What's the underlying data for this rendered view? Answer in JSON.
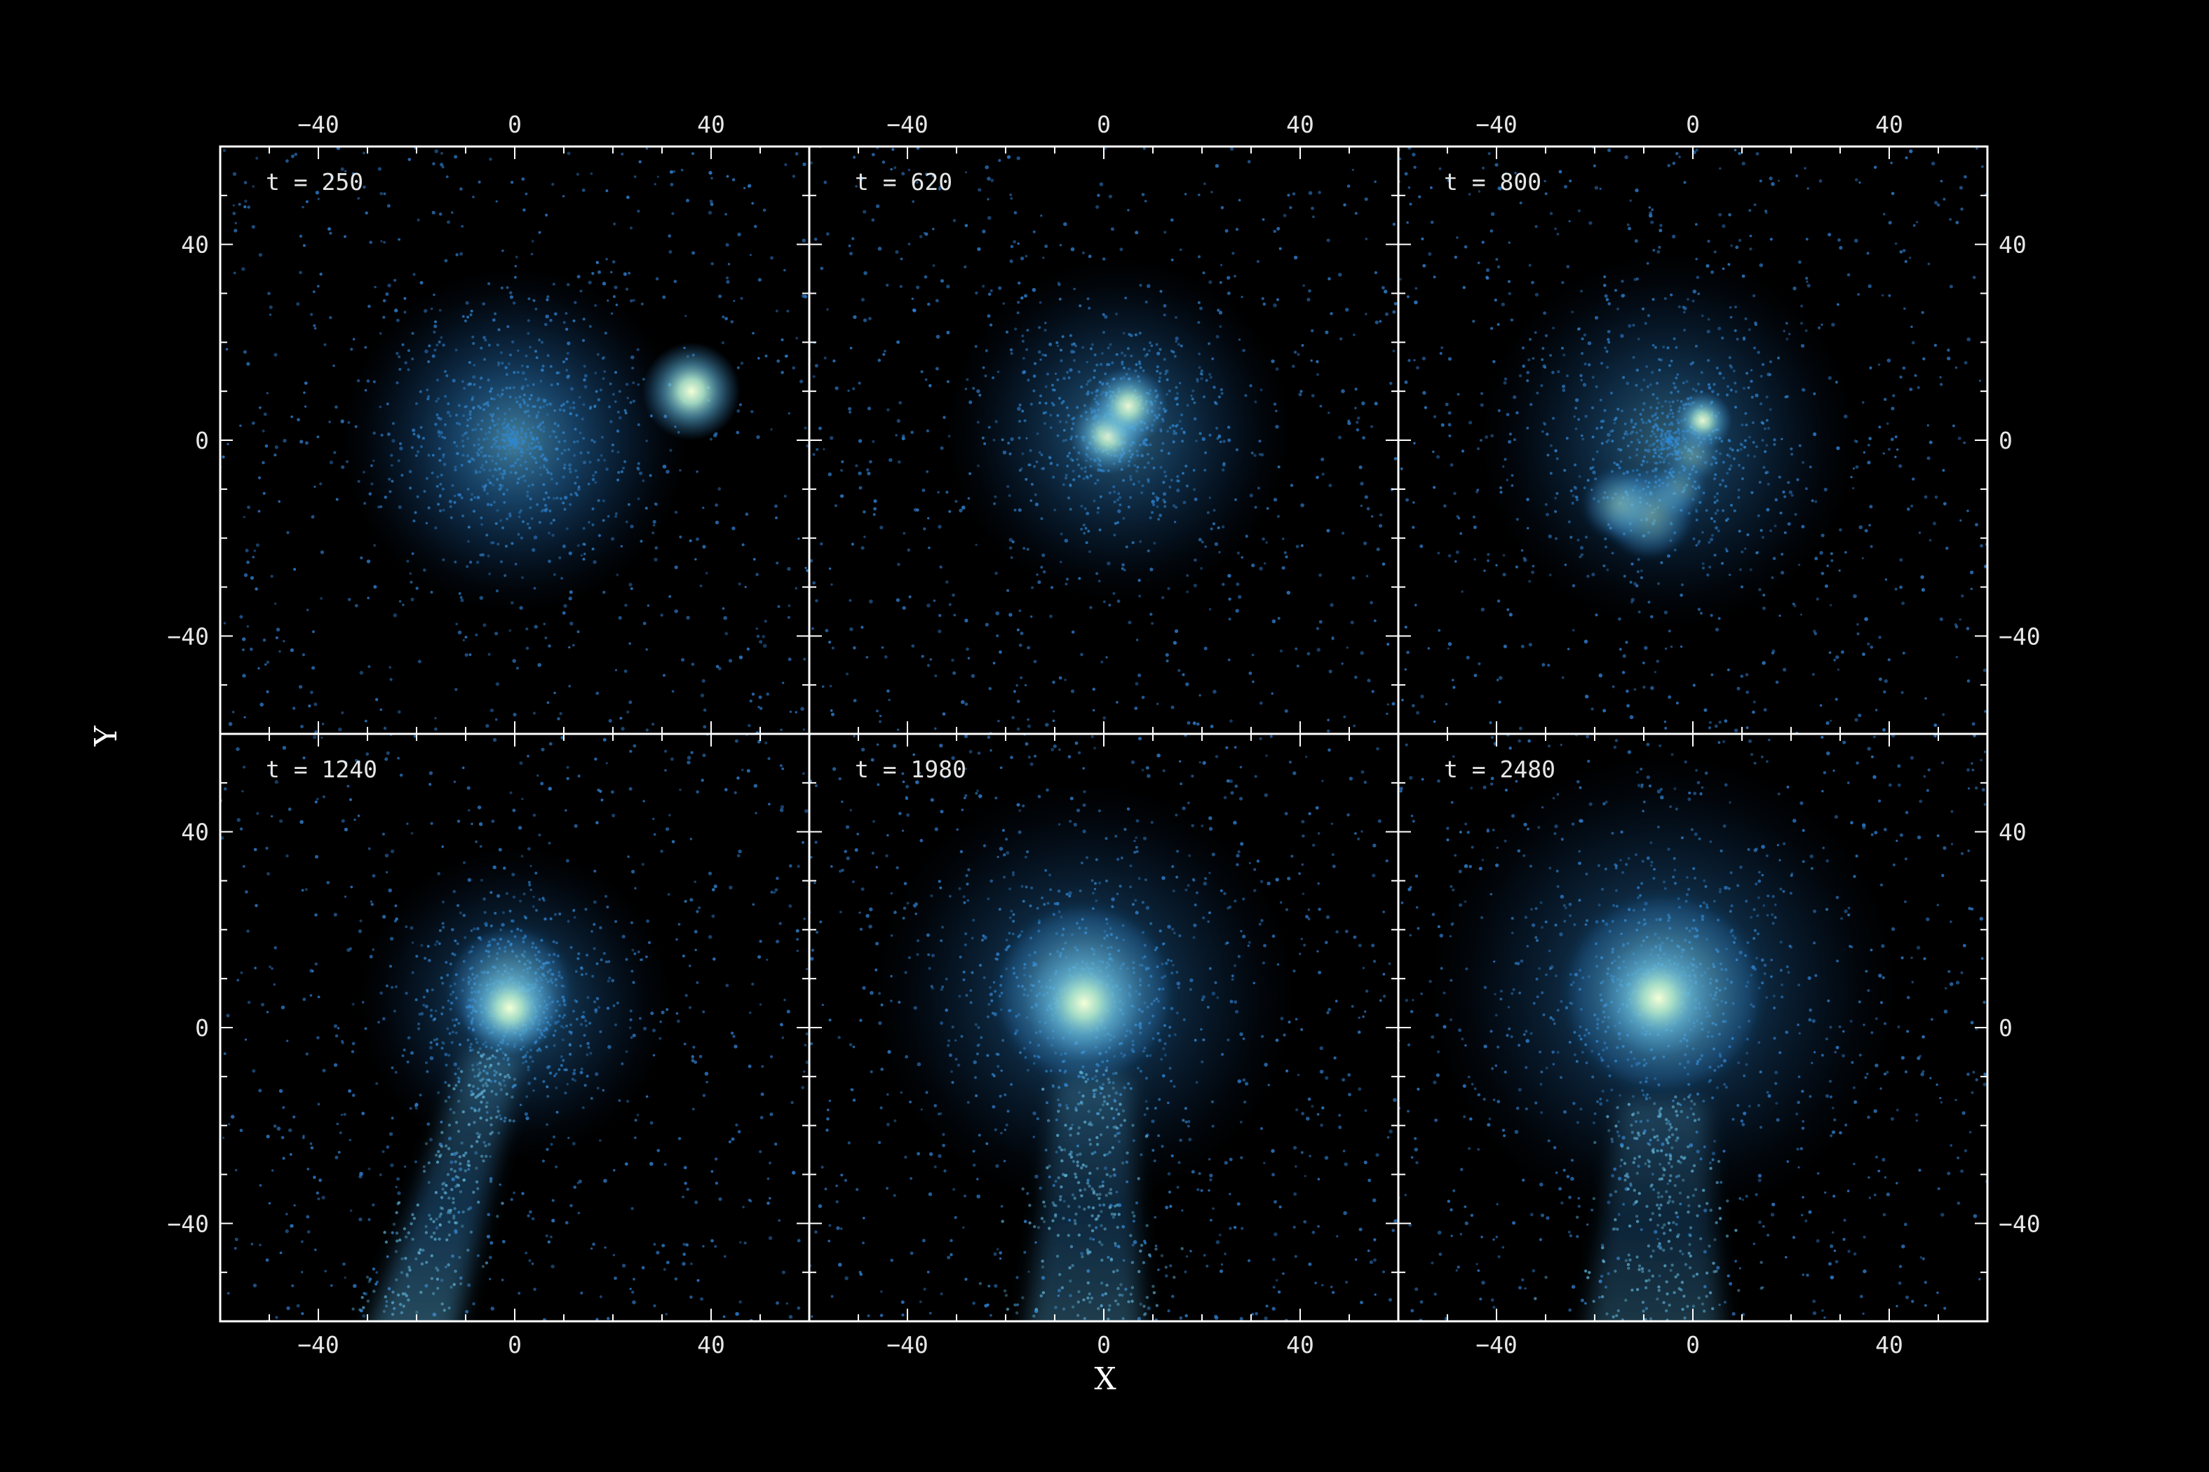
{
  "colors": {
    "background": "#000000",
    "frame": "#ffffff",
    "particle": "#2f7fd0",
    "colormap": [
      "#0b2a55",
      "#1a5fa8",
      "#2f86cf",
      "#5fb3d8",
      "#a8e0c8",
      "#f4ffd8"
    ]
  },
  "chart_data": {
    "type": "scatter",
    "title": "",
    "xlabel": "X",
    "ylabel": "Y",
    "xlim": [
      -60,
      60
    ],
    "ylim": [
      -60,
      60
    ],
    "xticks": [
      -40,
      0,
      40
    ],
    "yticks": [
      -40,
      0,
      40
    ],
    "xtick_labels": [
      "−40",
      "0",
      "40"
    ],
    "ytick_labels": [
      "−40",
      "0",
      "40"
    ],
    "grid": false,
    "layout": "2 rows x 3 columns, shared axes",
    "panels": [
      {
        "label": "t = 250",
        "structures": [
          {
            "kind": "halo",
            "x": 0,
            "y": 0,
            "radius": 22,
            "brightness": 0.95
          },
          {
            "kind": "compact-core",
            "x": 36,
            "y": 10,
            "radius": 5,
            "brightness": 1.0
          }
        ]
      },
      {
        "label": "t = 620",
        "structures": [
          {
            "kind": "halo",
            "x": 3,
            "y": 2,
            "radius": 22,
            "brightness": 0.75
          },
          {
            "kind": "core",
            "x": 1,
            "y": 1,
            "radius": 4,
            "brightness": 0.95
          },
          {
            "kind": "core",
            "x": 5,
            "y": 7,
            "radius": 4,
            "brightness": 0.95
          }
        ]
      },
      {
        "label": "800",
        "display": "t = 800",
        "structures": [
          {
            "kind": "halo",
            "x": -5,
            "y": 0,
            "radius": 24,
            "brightness": 0.7
          },
          {
            "kind": "core",
            "x": 2,
            "y": 4,
            "radius": 3,
            "brightness": 0.95
          },
          {
            "kind": "bridge",
            "x": 0,
            "y": -3,
            "radius": 3,
            "brightness": 0.7
          },
          {
            "kind": "bridge",
            "x": -3,
            "y": -10,
            "radius": 3,
            "brightness": 0.75
          },
          {
            "kind": "arc",
            "x": -9,
            "y": -15,
            "radius": 5,
            "brightness": 0.9
          },
          {
            "kind": "arc",
            "x": -15,
            "y": -13,
            "radius": 4,
            "brightness": 0.85
          }
        ]
      },
      {
        "label": "t = 1240",
        "structures": [
          {
            "kind": "halo",
            "x": 0,
            "y": 5,
            "radius": 20,
            "brightness": 0.7
          },
          {
            "kind": "shell",
            "x": -1,
            "y": 8,
            "radius": 11,
            "brightness": 0.8
          },
          {
            "kind": "core",
            "x": -1,
            "y": 4,
            "radius": 5,
            "brightness": 1.0
          },
          {
            "kind": "tail",
            "x0": -4,
            "y0": -5,
            "x1": -22,
            "y1": -60,
            "width": 9,
            "brightness": 0.6
          }
        ]
      },
      {
        "label": "t = 1980",
        "structures": [
          {
            "kind": "halo",
            "x": -4,
            "y": 7,
            "radius": 27,
            "brightness": 0.7
          },
          {
            "kind": "shell",
            "x": -4,
            "y": 7,
            "radius": 16,
            "brightness": 0.85
          },
          {
            "kind": "core",
            "x": -4,
            "y": 5,
            "radius": 6,
            "brightness": 1.0
          },
          {
            "kind": "tail",
            "x0": -2,
            "y0": -10,
            "x1": -4,
            "y1": -60,
            "width": 12,
            "brightness": 0.5
          }
        ]
      },
      {
        "label": "t = 2480",
        "structures": [
          {
            "kind": "halo",
            "x": -6,
            "y": 8,
            "radius": 30,
            "brightness": 0.7
          },
          {
            "kind": "shell",
            "x": -6,
            "y": 7,
            "radius": 18,
            "brightness": 0.8
          },
          {
            "kind": "core",
            "x": -7,
            "y": 6,
            "radius": 6,
            "brightness": 1.0
          },
          {
            "kind": "tail",
            "x0": -6,
            "y0": -15,
            "x1": -8,
            "y1": -60,
            "width": 14,
            "brightness": 0.45
          }
        ]
      }
    ]
  }
}
